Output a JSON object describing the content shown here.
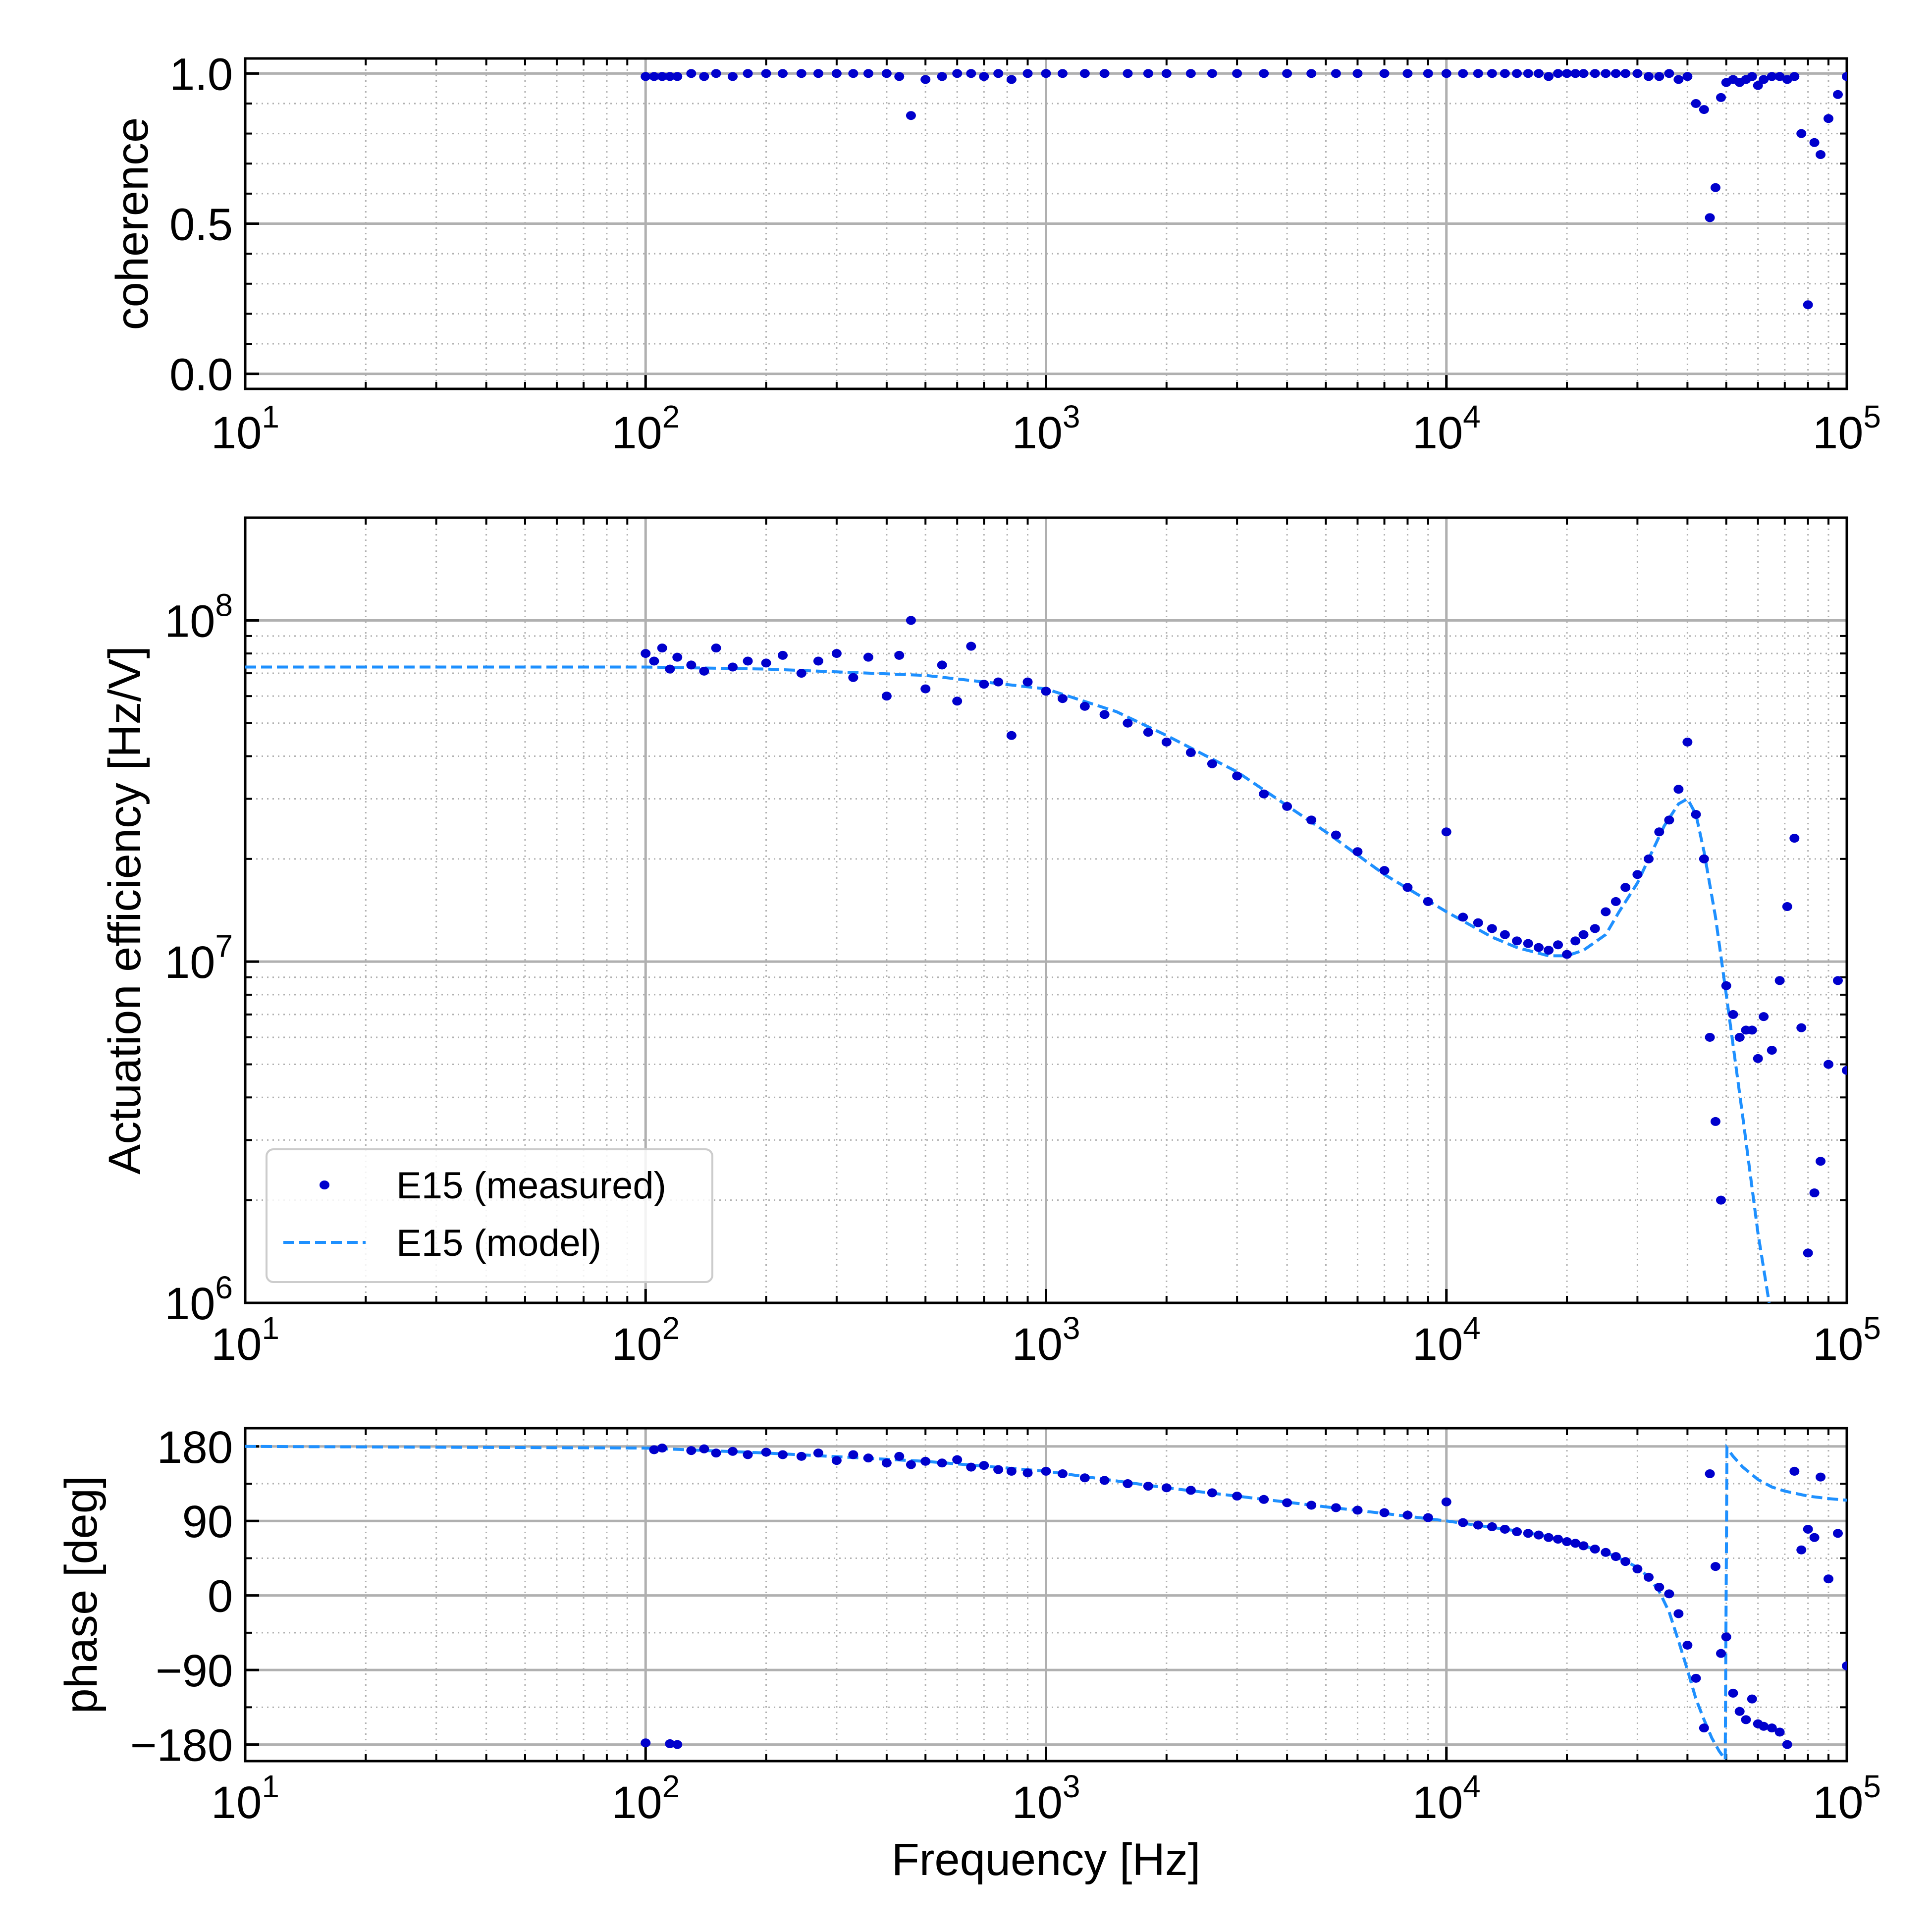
{
  "chart_data": [
    {
      "id": "coherence",
      "type": "scatter",
      "ylabel": "coherence",
      "xlabel": "",
      "xscale": "log",
      "xlim": [
        10,
        100000
      ],
      "ylim": [
        -0.05,
        1.05
      ],
      "x_ticks": [
        {
          "base": "10",
          "exp": "1"
        },
        {
          "base": "10",
          "exp": "2"
        },
        {
          "base": "10",
          "exp": "3"
        },
        {
          "base": "10",
          "exp": "4"
        },
        {
          "base": "10",
          "exp": "5"
        }
      ],
      "y_ticks": [
        {
          "value": 0,
          "label": "0.0"
        },
        {
          "value": 0.5,
          "label": "0.5"
        },
        {
          "value": 1,
          "label": "1.0"
        }
      ],
      "y_minor": [
        0.1,
        0.2,
        0.3,
        0.4,
        0.6,
        0.7,
        0.8,
        0.9
      ],
      "grid": true
    },
    {
      "id": "magnitude",
      "type": "line",
      "ylabel": "Actuation efficiency [Hz/V]",
      "xlabel": "",
      "xscale": "log",
      "yscale": "log",
      "xlim": [
        10,
        100000
      ],
      "ylim": [
        1000000,
        200000000
      ],
      "x_ticks": [
        {
          "base": "10",
          "exp": "1"
        },
        {
          "base": "10",
          "exp": "2"
        },
        {
          "base": "10",
          "exp": "3"
        },
        {
          "base": "10",
          "exp": "4"
        },
        {
          "base": "10",
          "exp": "5"
        }
      ],
      "y_ticks": [
        {
          "value": 1000000,
          "base": "10",
          "exp": "6"
        },
        {
          "value": 10000000,
          "base": "10",
          "exp": "7"
        },
        {
          "value": 100000000,
          "base": "10",
          "exp": "8"
        }
      ],
      "legend": {
        "position": "lower-left",
        "entries": [
          {
            "label": "E15 (measured)",
            "style": "dot"
          },
          {
            "label": "E15 (model)",
            "style": "dashed"
          }
        ]
      },
      "grid": true
    },
    {
      "id": "phase",
      "type": "line",
      "ylabel": "phase [deg]",
      "xlabel": "Frequency [Hz]",
      "xscale": "log",
      "xlim": [
        10,
        100000
      ],
      "ylim": [
        -200,
        202
      ],
      "x_ticks": [
        {
          "base": "10",
          "exp": "1"
        },
        {
          "base": "10",
          "exp": "2"
        },
        {
          "base": "10",
          "exp": "3"
        },
        {
          "base": "10",
          "exp": "4"
        },
        {
          "base": "10",
          "exp": "5"
        }
      ],
      "y_ticks": [
        {
          "value": 180,
          "label": "180"
        },
        {
          "value": 90,
          "label": "90"
        },
        {
          "value": 0,
          "label": "0"
        },
        {
          "value": -90,
          "label": "−90"
        },
        {
          "value": -180,
          "label": "−180"
        }
      ],
      "y_minor": [
        135,
        45,
        -45,
        -135
      ],
      "grid": true
    }
  ],
  "series": {
    "measured": {
      "name": "E15 (measured)",
      "color": "#0000cc",
      "freq": [
        100,
        105,
        110,
        115,
        120,
        130,
        140,
        150,
        165,
        180,
        200,
        220,
        245,
        270,
        300,
        330,
        360,
        400,
        430,
        460,
        500,
        550,
        600,
        650,
        700,
        760,
        820,
        900,
        1000,
        1100,
        1250,
        1400,
        1600,
        1800,
        2000,
        2300,
        2600,
        3000,
        3500,
        4000,
        4600,
        5300,
        6000,
        7000,
        8000,
        9000,
        10000,
        11000,
        12000,
        13000,
        14000,
        15000,
        16000,
        17000,
        18000,
        19000,
        20000,
        21000,
        22000,
        23500,
        25000,
        26500,
        28000,
        30000,
        32000,
        34000,
        36000,
        38000,
        40000,
        42000,
        44000,
        45500,
        47000,
        48500,
        50000,
        52000,
        54000,
        56000,
        58000,
        60000,
        62000,
        65000,
        68000,
        71000,
        74000,
        77000,
        80000,
        83000,
        86000,
        90000,
        95000,
        100000
      ],
      "magnitude": [
        80000000.0,
        76000000.0,
        83000000.0,
        72000000.0,
        78000000.0,
        74000000.0,
        71000000.0,
        83000000.0,
        73000000.0,
        76000000.0,
        75000000.0,
        79000000.0,
        70000000.0,
        76000000.0,
        80000000.0,
        68000000.0,
        78000000.0,
        60000000.0,
        79000000.0,
        100000000.0,
        63000000.0,
        74000000.0,
        58000000.0,
        84000000.0,
        65000000.0,
        66000000.0,
        46000000.0,
        66000000.0,
        62000000.0,
        59000000.0,
        56000000.0,
        53000000.0,
        50000000.0,
        47000000.0,
        44000000.0,
        41000000.0,
        38000000.0,
        35000000.0,
        31000000.0,
        28500000.0,
        26000000.0,
        23500000.0,
        21000000.0,
        18500000.0,
        16500000.0,
        15000000.0,
        24000000.0,
        13500000.0,
        13000000.0,
        12500000.0,
        12000000.0,
        11500000.0,
        11300000.0,
        11000000.0,
        10800000.0,
        11200000.0,
        10500000.0,
        11500000.0,
        12000000.0,
        12500000.0,
        14000000.0,
        15000000.0,
        16500000.0,
        18000000.0,
        20000000.0,
        24000000.0,
        26000000.0,
        32000000.0,
        44000000.0,
        27000000.0,
        20000000.0,
        6000000.0,
        3400000.0,
        2000000.0,
        8500000.0,
        7000000.0,
        6000000.0,
        6300000.0,
        6300000.0,
        5200000.0,
        6900000.0,
        5500000.0,
        8800000.0,
        14500000.0,
        23000000.0,
        6400000.0,
        1400000.0,
        2100000.0,
        2600000.0,
        5000000.0,
        8800000.0,
        4800000.0
      ],
      "phase": [
        -178,
        176,
        178,
        -179,
        -180,
        175,
        177,
        172,
        174,
        170,
        173,
        170,
        168,
        172,
        163,
        170,
        166,
        160,
        168,
        158,
        162,
        160,
        164,
        155,
        157,
        152,
        150,
        148,
        150,
        147,
        142,
        139,
        135,
        132,
        130,
        127,
        124,
        120,
        116,
        112,
        109,
        106,
        103,
        100,
        97,
        94,
        113,
        88,
        85,
        83,
        80,
        77,
        75,
        73,
        70,
        68,
        65,
        63,
        60,
        56,
        52,
        47,
        41,
        32,
        22,
        10,
        2,
        -22,
        -60,
        -100,
        -160,
        147,
        35,
        -70,
        -50,
        -118,
        -140,
        -150,
        -125,
        -155,
        -158,
        -160,
        -165,
        -180,
        150,
        55,
        80,
        70,
        143,
        20,
        75,
        -85
      ],
      "coherence": [
        0.99,
        0.99,
        0.99,
        0.99,
        0.99,
        1.0,
        0.99,
        1.0,
        0.99,
        1.0,
        1.0,
        1.0,
        1.0,
        1.0,
        1.0,
        1.0,
        1.0,
        1.0,
        0.99,
        0.86,
        0.98,
        0.99,
        1.0,
        1.0,
        0.99,
        1.0,
        0.98,
        1.0,
        1.0,
        1.0,
        1.0,
        1.0,
        1.0,
        1.0,
        1.0,
        1.0,
        1.0,
        1.0,
        1.0,
        1.0,
        1.0,
        1.0,
        1.0,
        1.0,
        1.0,
        1.0,
        1.0,
        1.0,
        1.0,
        1.0,
        1.0,
        1.0,
        1.0,
        1.0,
        0.99,
        1.0,
        1.0,
        1.0,
        1.0,
        1.0,
        1.0,
        1.0,
        1.0,
        1.0,
        0.99,
        0.99,
        1.0,
        0.98,
        0.99,
        0.9,
        0.88,
        0.52,
        0.62,
        0.92,
        0.97,
        0.98,
        0.97,
        0.98,
        0.99,
        0.96,
        0.98,
        0.99,
        0.99,
        0.98,
        0.99,
        0.8,
        0.23,
        0.77,
        0.73,
        0.85,
        0.93,
        0.99
      ]
    },
    "model": {
      "name": "E15 (model)",
      "color": "#1e90ff",
      "magnitude_curve": [
        [
          10,
          73000000.0
        ],
        [
          100,
          73000000.0
        ],
        [
          200,
          72000000.0
        ],
        [
          500,
          69000000.0
        ],
        [
          1000,
          63000000.0
        ],
        [
          1500,
          54000000.0
        ],
        [
          2000,
          46000000.0
        ],
        [
          3000,
          36000000.0
        ],
        [
          5000,
          24000000.0
        ],
        [
          7000,
          18000000.0
        ],
        [
          10000,
          14000000.0
        ],
        [
          13000,
          11800000.0
        ],
        [
          15000,
          11000000.0
        ],
        [
          18000,
          10400000.0
        ],
        [
          20000,
          10400000.0
        ],
        [
          22000,
          10800000.0
        ],
        [
          25000,
          12000000.0
        ],
        [
          27000,
          14000000.0
        ],
        [
          30000,
          17000000.0
        ],
        [
          32000,
          20000000.0
        ],
        [
          35000,
          25000000.0
        ],
        [
          38000,
          29000000.0
        ],
        [
          40000,
          30000000.0
        ],
        [
          42000,
          27000000.0
        ],
        [
          44000,
          21000000.0
        ],
        [
          47000,
          13500000.0
        ],
        [
          50000,
          8000000.0
        ],
        [
          55000,
          3500000.0
        ],
        [
          60000,
          1600000.0
        ],
        [
          64000,
          1000000.0
        ]
      ],
      "phase_curve": [
        [
          10,
          180
        ],
        [
          100,
          178
        ],
        [
          200,
          172
        ],
        [
          500,
          162
        ],
        [
          1000,
          150
        ],
        [
          2000,
          130
        ],
        [
          3000,
          120
        ],
        [
          5000,
          107
        ],
        [
          7000,
          99
        ],
        [
          10000,
          90
        ],
        [
          15000,
          78
        ],
        [
          18000,
          71
        ],
        [
          22000,
          60
        ],
        [
          25000,
          52
        ],
        [
          27000,
          45
        ],
        [
          30000,
          34
        ],
        [
          32000,
          22
        ],
        [
          34000,
          5
        ],
        [
          36000,
          -20
        ],
        [
          38000,
          -55
        ],
        [
          40000,
          -90
        ],
        [
          42000,
          -125
        ],
        [
          44000,
          -150
        ],
        [
          46000,
          -172
        ],
        [
          48000,
          -188
        ],
        [
          49700,
          -198
        ],
        [
          50200,
          178
        ],
        [
          52000,
          168
        ],
        [
          55000,
          155
        ],
        [
          60000,
          140
        ],
        [
          65000,
          131
        ],
        [
          70000,
          126
        ],
        [
          80000,
          120
        ],
        [
          90000,
          117
        ],
        [
          100000,
          115
        ]
      ]
    }
  }
}
